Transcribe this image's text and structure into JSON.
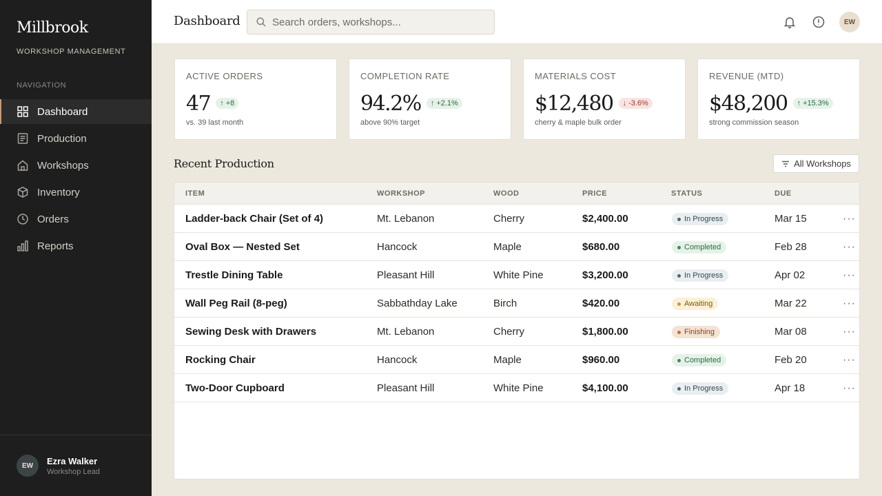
{
  "brand": {
    "name": "Millbrook",
    "subtitle": "WORKSHOP MANAGEMENT"
  },
  "sidebar": {
    "heading": "NAVIGATION",
    "items": [
      {
        "label": "Dashboard",
        "icon": "grid-icon",
        "active": true
      },
      {
        "label": "Production",
        "icon": "document-icon",
        "active": false
      },
      {
        "label": "Workshops",
        "icon": "home-icon",
        "active": false
      },
      {
        "label": "Inventory",
        "icon": "box-icon",
        "active": false
      },
      {
        "label": "Orders",
        "icon": "clock-icon",
        "active": false
      },
      {
        "label": "Reports",
        "icon": "bar-chart-icon",
        "active": false
      }
    ],
    "user": {
      "initials": "EW",
      "name": "Ezra Walker",
      "role": "Workshop Lead"
    }
  },
  "header": {
    "title": "Dashboard",
    "search_placeholder": "Search orders, workshops...",
    "avatar_initials": "EW"
  },
  "stats": [
    {
      "label": "ACTIVE ORDERS",
      "value": "47",
      "delta": "+8",
      "direction": "up",
      "note": "vs. 39 last month"
    },
    {
      "label": "COMPLETION RATE",
      "value": "94.2%",
      "delta": "+2.1%",
      "direction": "up",
      "note": "above 90% target"
    },
    {
      "label": "MATERIALS COST",
      "value": "$12,480",
      "delta": "-3.6%",
      "direction": "down",
      "note": "cherry & maple bulk order"
    },
    {
      "label": "REVENUE (MTD)",
      "value": "$48,200",
      "delta": "+15.3%",
      "direction": "up",
      "note": "strong commission season"
    }
  ],
  "production": {
    "title": "Recent Production",
    "filter_label": "All Workshops",
    "columns": [
      "ITEM",
      "WORKSHOP",
      "WOOD",
      "PRICE",
      "STATUS",
      "DUE"
    ],
    "rows": [
      {
        "item": "Ladder-back Chair (Set of 4)",
        "workshop": "Mt. Lebanon",
        "wood": "Cherry",
        "price": "$2,400.00",
        "status": "In Progress",
        "status_kind": "progress",
        "due": "Mar 15"
      },
      {
        "item": "Oval Box — Nested Set",
        "workshop": "Hancock",
        "wood": "Maple",
        "price": "$680.00",
        "status": "Completed",
        "status_kind": "completed",
        "due": "Feb 28"
      },
      {
        "item": "Trestle Dining Table",
        "workshop": "Pleasant Hill",
        "wood": "White Pine",
        "price": "$3,200.00",
        "status": "In Progress",
        "status_kind": "progress",
        "due": "Apr 02"
      },
      {
        "item": "Wall Peg Rail (8-peg)",
        "workshop": "Sabbathday Lake",
        "wood": "Birch",
        "price": "$420.00",
        "status": "Awaiting",
        "status_kind": "awaiting",
        "due": "Mar 22"
      },
      {
        "item": "Sewing Desk with Drawers",
        "workshop": "Mt. Lebanon",
        "wood": "Cherry",
        "price": "$1,800.00",
        "status": "Finishing",
        "status_kind": "finishing",
        "due": "Mar 08"
      },
      {
        "item": "Rocking Chair",
        "workshop": "Hancock",
        "wood": "Maple",
        "price": "$960.00",
        "status": "Completed",
        "status_kind": "completed",
        "due": "Feb 20"
      },
      {
        "item": "Two-Door Cupboard",
        "workshop": "Pleasant Hill",
        "wood": "White Pine",
        "price": "$4,100.00",
        "status": "In Progress",
        "status_kind": "progress",
        "due": "Apr 18"
      }
    ]
  },
  "colors": {
    "sidebar_bg": "#1e1e1e",
    "accent": "#c79a64",
    "page_bg": "#ede8de",
    "positive": "#2b6b3b",
    "negative": "#a3372c"
  }
}
